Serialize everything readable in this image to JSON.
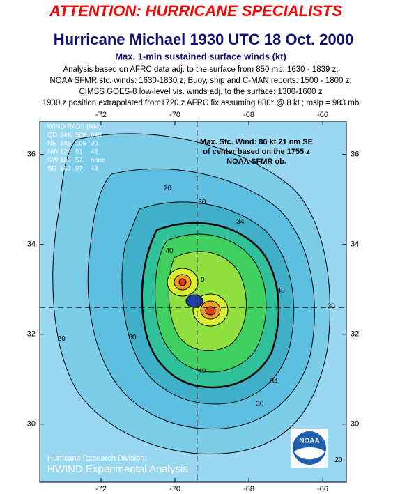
{
  "header": {
    "alert": "ATTENTION: HURRICANE SPECIALISTS",
    "title": "Hurricane Michael 1930 UTC 18 Oct. 2000",
    "subtitle": "Max. 1-min sustained surface winds (kt)",
    "notes": [
      "Analysis based on AFRC data adj. to the surface from 850 mb: 1630 - 1839 z;",
      "NOAA SFMR sfc. winds: 1630-1830 z; Buoy, ship and C-MAN reports: 1500 - 1800 z;",
      "CIMSS GOES-8 low-level vis. winds adj. to the surface: 1300-1600 z",
      "1930 z position extrapolated from1720 z AFRC fix assuming 030° @ 8 kt ; mslp = 983 mb"
    ]
  },
  "chart_data": {
    "type": "contour",
    "xlim": [
      -73.66,
      -65.36
    ],
    "ylim": [
      28.71,
      36.74
    ],
    "xticks": [
      -72,
      -70,
      -68,
      -66
    ],
    "yticks": [
      30,
      32,
      34,
      36
    ],
    "center": {
      "lon": -69.4,
      "lat": 32.6
    },
    "contour_labels": [
      {
        "value": 20,
        "lon": -70.2,
        "lat": 35.25
      },
      {
        "value": 30,
        "lon": -69.27,
        "lat": 34.94
      },
      {
        "value": 34,
        "lon": -68.23,
        "lat": 34.5
      },
      {
        "value": 40,
        "lon": -70.15,
        "lat": 33.85
      },
      {
        "value": 0,
        "lon": -69.25,
        "lat": 33.2
      },
      {
        "value": 40,
        "lon": -67.13,
        "lat": 32.97
      },
      {
        "value": 30,
        "lon": -65.77,
        "lat": 32.62
      },
      {
        "value": 20,
        "lon": -73.07,
        "lat": 31.9
      },
      {
        "value": 30,
        "lon": -71.15,
        "lat": 31.93
      },
      {
        "value": 40,
        "lon": -69.27,
        "lat": 31.18
      },
      {
        "value": 34,
        "lon": -67.32,
        "lat": 30.95
      },
      {
        "value": 30,
        "lon": -67.7,
        "lat": 30.45
      },
      {
        "value": 20,
        "lon": -65.57,
        "lat": 29.2
      }
    ],
    "legend_title": "WIND RADII (NM)",
    "legend_rows": [
      [
        "QD",
        "34K",
        "50K",
        "64K"
      ],
      [
        "NE",
        "145",
        "105",
        "30"
      ],
      [
        "NW",
        "124",
        "81",
        "48"
      ],
      [
        "SW",
        "103",
        "57",
        "none"
      ],
      [
        "SE",
        "163",
        "97",
        "43"
      ]
    ],
    "annotation": [
      "Max. Sfc. Wind: 86 kt 21 nm SE",
      "of center based on the 1755 z",
      "NOAA SFMR ob."
    ],
    "credit": [
      "Hurricane Research Division:",
      "HWIND Experimental Analysis"
    ],
    "logo": "NOAA"
  }
}
